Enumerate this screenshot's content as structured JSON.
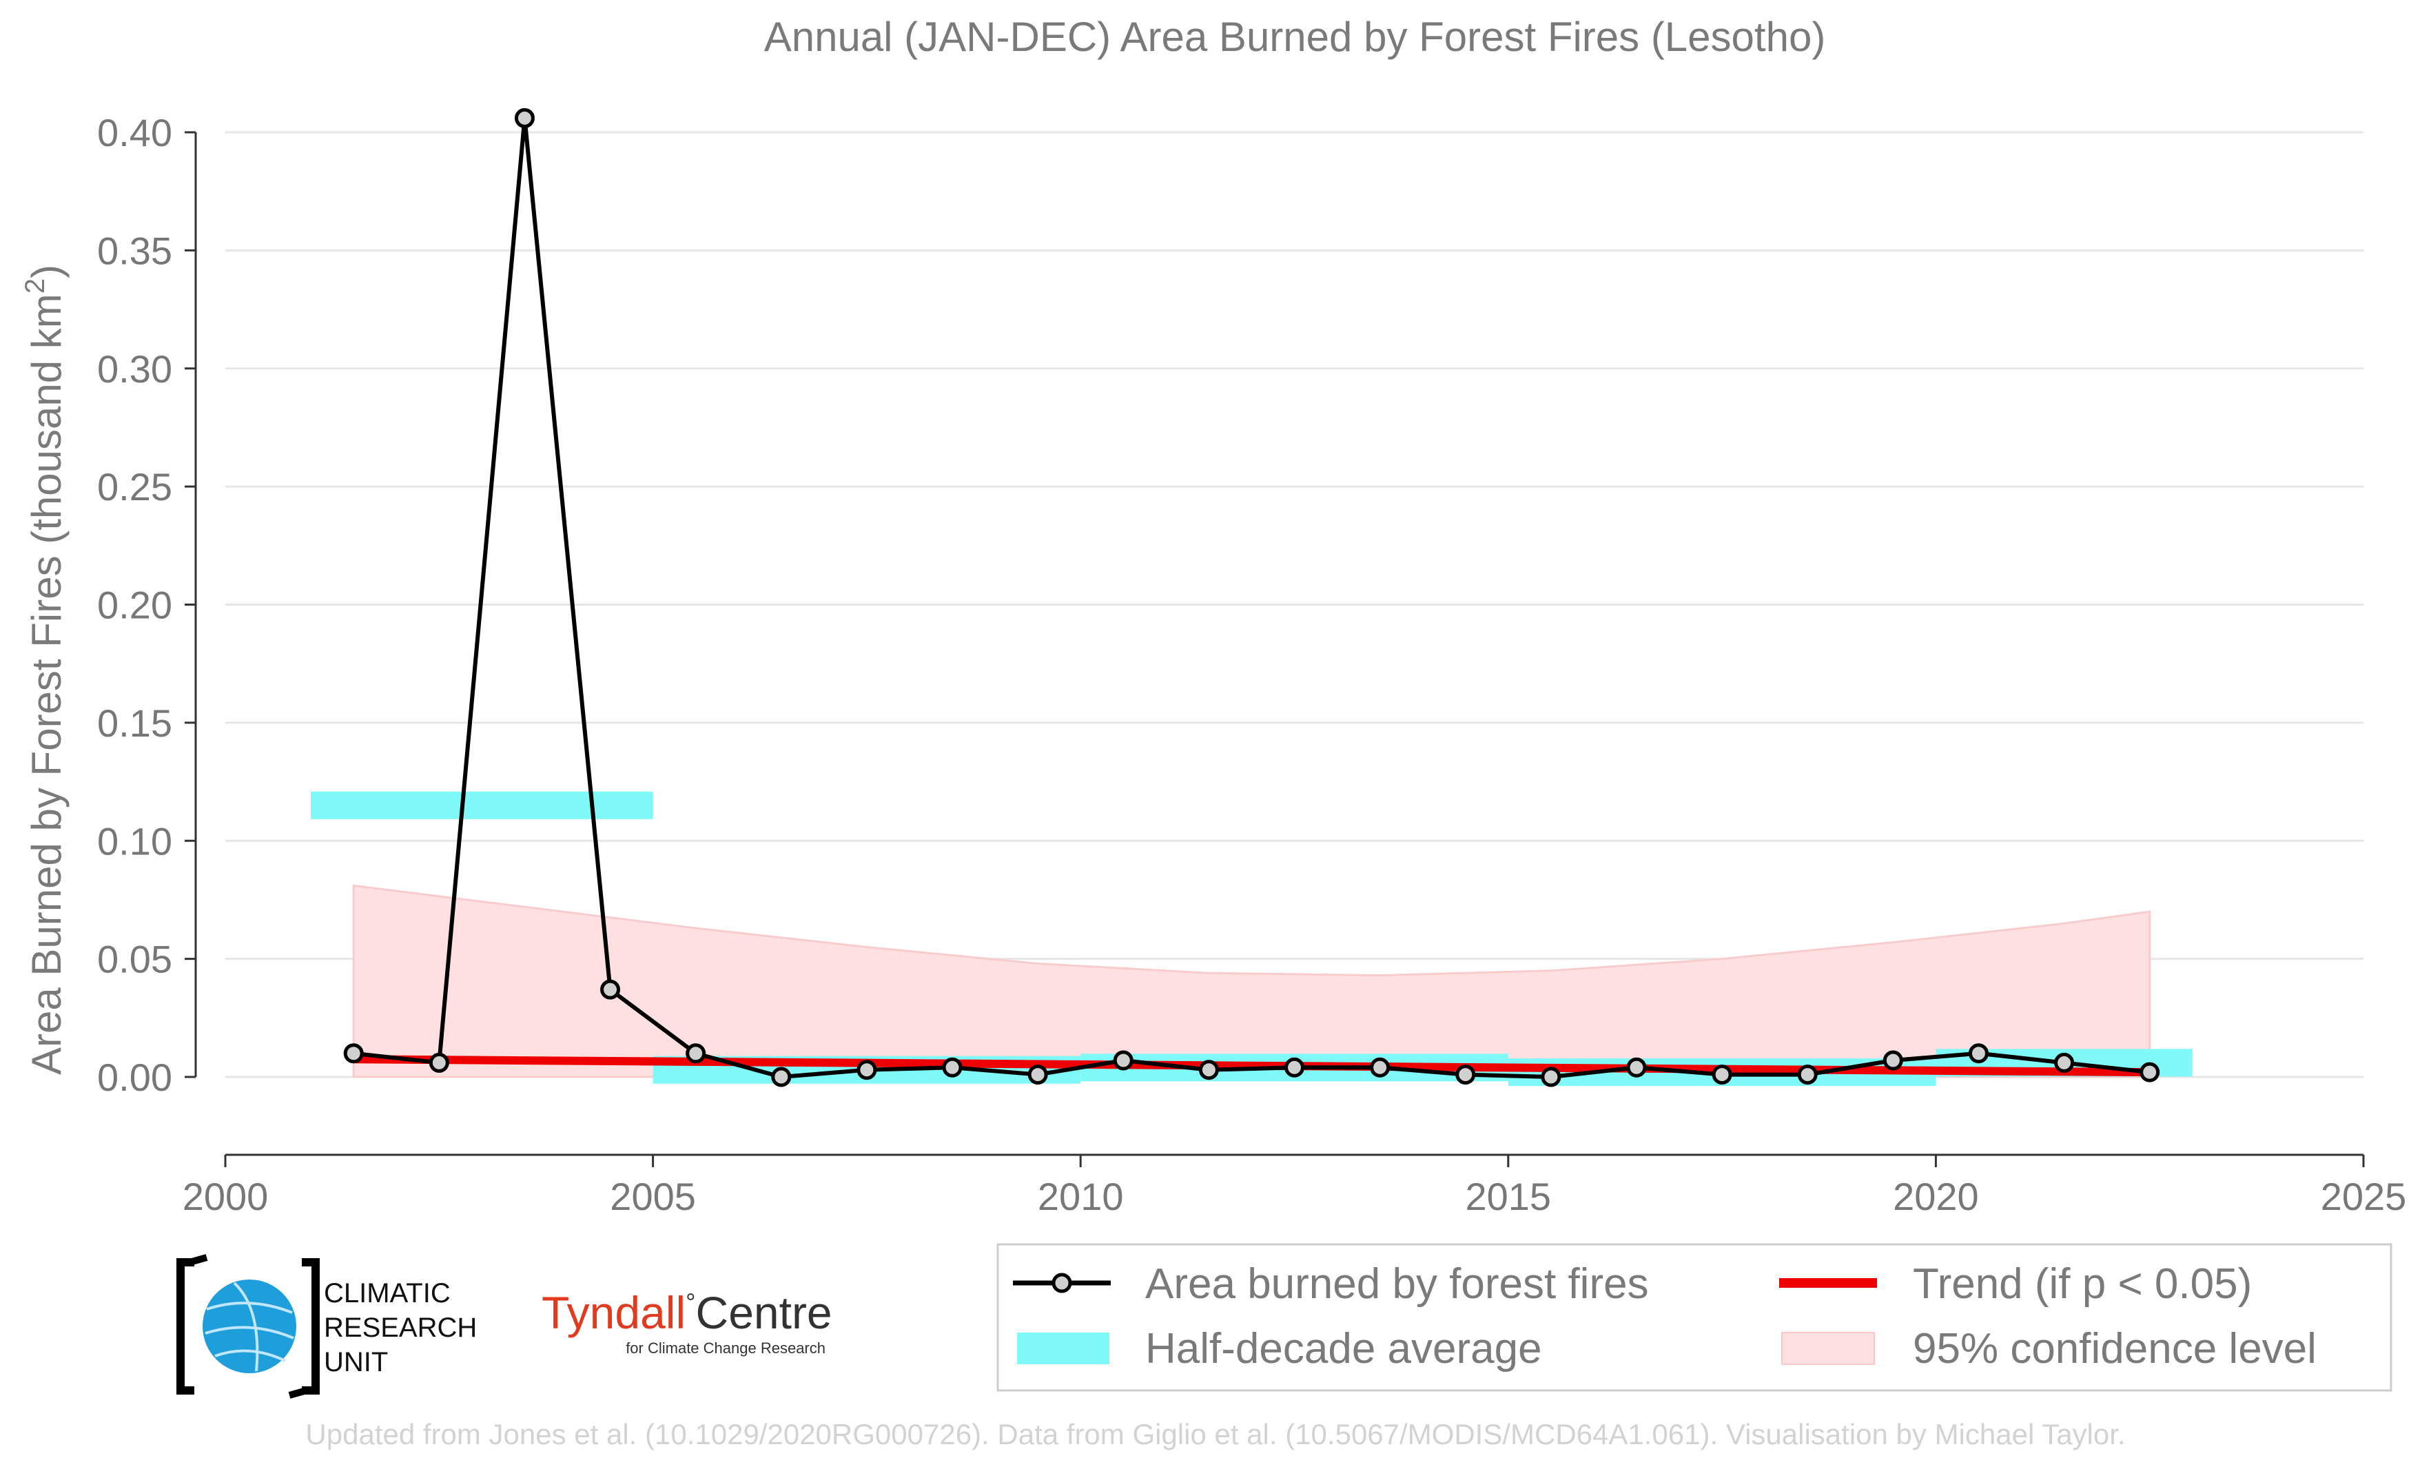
{
  "colors": {
    "line": "#000000",
    "marker_fill": "#d0d0d0",
    "half_decade": "#7ff8f8",
    "trend": "#ee0000",
    "confidence": "#ffe0e0",
    "grid": "#e6e6e6",
    "text": "#777777"
  },
  "chart_data": {
    "type": "line",
    "title": "Annual (JAN-DEC) Area Burned by Forest Fires (Lesotho)",
    "xlabel": "",
    "ylabel": "Area Burned by Forest Fires (thousand km",
    "ylabel_sup": "2",
    "ylabel_tail": ")",
    "xlim": [
      2000,
      2025
    ],
    "ylim": [
      -0.032,
      0.41
    ],
    "x_ticks": [
      {
        "value": 2000,
        "label": "2000"
      },
      {
        "value": 2005,
        "label": "2005"
      },
      {
        "value": 2010,
        "label": "2010"
      },
      {
        "value": 2015,
        "label": "2015"
      },
      {
        "value": 2020,
        "label": "2020"
      },
      {
        "value": 2025,
        "label": "2025"
      }
    ],
    "y_ticks": [
      {
        "value": 0.0,
        "label": "0.00"
      },
      {
        "value": 0.05,
        "label": "0.05"
      },
      {
        "value": 0.1,
        "label": "0.10"
      },
      {
        "value": 0.15,
        "label": "0.15"
      },
      {
        "value": 0.2,
        "label": "0.20"
      },
      {
        "value": 0.25,
        "label": "0.25"
      },
      {
        "value": 0.3,
        "label": "0.30"
      },
      {
        "value": 0.35,
        "label": "0.35"
      },
      {
        "value": 0.4,
        "label": "0.40"
      }
    ],
    "grid": true,
    "series": [
      {
        "name": "Area burned by forest fires",
        "x": [
          2001.5,
          2002.5,
          2003.5,
          2004.5,
          2005.5,
          2006.5,
          2007.5,
          2008.5,
          2009.5,
          2010.5,
          2011.5,
          2012.5,
          2013.5,
          2014.5,
          2015.5,
          2016.5,
          2017.5,
          2018.5,
          2019.5,
          2020.5,
          2021.5,
          2022.5
        ],
        "y": [
          0.01,
          0.006,
          0.406,
          0.037,
          0.01,
          0.0,
          0.003,
          0.004,
          0.001,
          0.007,
          0.003,
          0.004,
          0.004,
          0.001,
          0.0,
          0.004,
          0.001,
          0.001,
          0.007,
          0.01,
          0.006,
          0.002
        ]
      }
    ],
    "half_decade_average": {
      "name": "Half-decade average",
      "segments": [
        {
          "x0": 2001,
          "x1": 2005,
          "y": 0.115
        },
        {
          "x0": 2005,
          "x1": 2010,
          "y": 0.003
        },
        {
          "x0": 2010,
          "x1": 2015,
          "y": 0.004
        },
        {
          "x0": 2015,
          "x1": 2020,
          "y": 0.002
        },
        {
          "x0": 2020,
          "x1": 2023,
          "y": 0.006
        }
      ]
    },
    "trend": {
      "name": "Trend (if p < 0.05)",
      "x": [
        2001.5,
        2022.5
      ],
      "y": [
        0.0075,
        0.002
      ]
    },
    "confidence": {
      "name": "95% confidence level",
      "x": [
        2001.5,
        2003.5,
        2005.5,
        2007.5,
        2009.5,
        2011.5,
        2013.5,
        2015.5,
        2017.5,
        2019.5,
        2021.5,
        2022.5
      ],
      "upper": [
        0.081,
        0.072,
        0.063,
        0.055,
        0.048,
        0.044,
        0.043,
        0.045,
        0.05,
        0.057,
        0.065,
        0.07
      ],
      "lower": [
        0.0,
        0.0,
        0.0,
        0.0,
        0.0,
        0.0,
        0.0,
        0.0,
        0.0,
        0.0,
        0.0,
        0.0
      ]
    },
    "legend_position": "bottom-right"
  },
  "legend": {
    "items": [
      {
        "label": "Area burned by forest fires"
      },
      {
        "label": "Trend (if p < 0.05)"
      },
      {
        "label": "Half-decade average"
      },
      {
        "label": "95% confidence level"
      }
    ]
  },
  "logos": {
    "cru_line1": "CLIMATIC",
    "cru_line2": "RESEARCH",
    "cru_line3": "UNIT",
    "tyndall_main": "Tyndall",
    "tyndall_degree": "°",
    "tyndall_centre": "Centre",
    "tyndall_sub": "for Climate Change Research"
  },
  "footer": {
    "credit": "Updated from Jones et al. (10.1029/2020RG000726). Data from Giglio et al. (10.5067/MODIS/MCD64A1.061). Visualisation by Michael Taylor."
  }
}
